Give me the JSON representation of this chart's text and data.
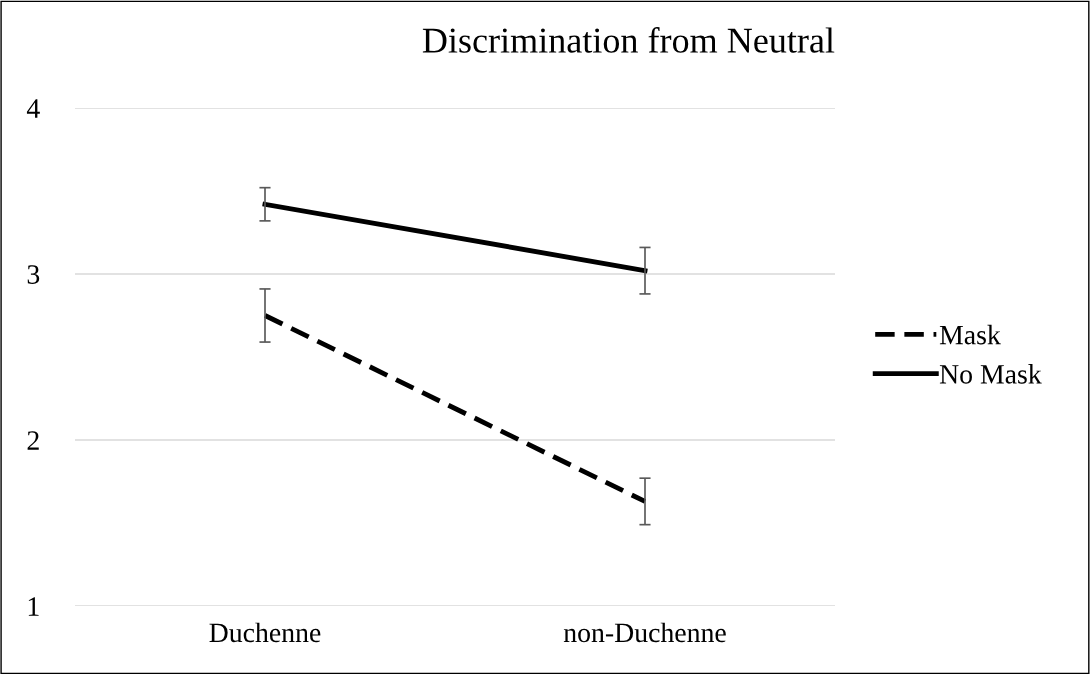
{
  "chart_data": {
    "type": "line",
    "title": "Discrimination from Neutral",
    "categories": [
      "Duchenne",
      "non-Duchenne"
    ],
    "series": [
      {
        "name": "Mask",
        "color": "#000000",
        "values": [
          2.75,
          1.63
        ],
        "errors": [
          0.16,
          0.14
        ],
        "line_style": "dashed"
      },
      {
        "name": "No Mask",
        "color": "#000000",
        "values": [
          3.42,
          3.02
        ],
        "errors": [
          0.1,
          0.14
        ],
        "line_style": "solid"
      }
    ],
    "ylim": [
      1,
      4
    ],
    "yticks": [
      1,
      2,
      3,
      4
    ],
    "grid": "y",
    "legend": "right",
    "marker": "none"
  }
}
